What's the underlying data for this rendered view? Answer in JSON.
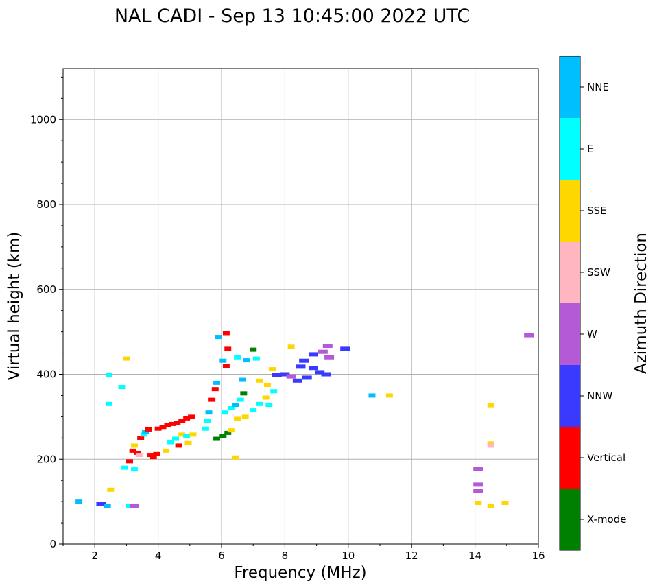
{
  "chart_data": {
    "type": "scatter",
    "title": "NAL CADI - Sep 13 10:45:00 2022 UTC",
    "xlabel": "Frequency (MHz)",
    "ylabel": "Virtual height (km)",
    "xlim": [
      1,
      16
    ],
    "ylim": [
      0,
      1120
    ],
    "xticks": [
      2,
      4,
      6,
      8,
      10,
      12,
      14,
      16
    ],
    "yticks": [
      0,
      200,
      400,
      600,
      800,
      1000
    ],
    "grid": true,
    "colorbar": {
      "label": "Azimuth Direction",
      "categories": [
        {
          "name": "X-mode",
          "color": "#008000"
        },
        {
          "name": "Vertical",
          "color": "#ff0000"
        },
        {
          "name": "NNW",
          "color": "#3a3aff"
        },
        {
          "name": "W",
          "color": "#b45ad6"
        },
        {
          "name": "SSW",
          "color": "#ffb6c1"
        },
        {
          "name": "SSE",
          "color": "#ffd700"
        },
        {
          "name": "E",
          "color": "#00ffff"
        },
        {
          "name": "NNE",
          "color": "#00bfff"
        }
      ]
    },
    "points": [
      {
        "f": 1.5,
        "h": 100,
        "d": "NNE"
      },
      {
        "f": 2.2,
        "h": 95,
        "d": "NNW"
      },
      {
        "f": 2.4,
        "h": 90,
        "d": "NNE"
      },
      {
        "f": 2.5,
        "h": 128,
        "d": "SSE"
      },
      {
        "f": 2.45,
        "h": 330,
        "d": "E"
      },
      {
        "f": 2.45,
        "h": 398,
        "d": "E"
      },
      {
        "f": 2.85,
        "h": 370,
        "d": "E"
      },
      {
        "f": 3.0,
        "h": 437,
        "d": "SSE"
      },
      {
        "f": 3.1,
        "h": 90,
        "d": "E"
      },
      {
        "f": 3.25,
        "h": 90,
        "d": "W"
      },
      {
        "f": 2.95,
        "h": 180,
        "d": "E"
      },
      {
        "f": 3.25,
        "h": 176,
        "d": "E"
      },
      {
        "f": 3.1,
        "h": 195,
        "d": "Vertical"
      },
      {
        "f": 3.2,
        "h": 220,
        "d": "Vertical"
      },
      {
        "f": 3.25,
        "h": 232,
        "d": "SSE"
      },
      {
        "f": 3.35,
        "h": 215,
        "d": "Vertical"
      },
      {
        "f": 3.4,
        "h": 210,
        "d": "SSW"
      },
      {
        "f": 3.45,
        "h": 250,
        "d": "Vertical"
      },
      {
        "f": 3.55,
        "h": 258,
        "d": "E"
      },
      {
        "f": 3.6,
        "h": 265,
        "d": "NNE"
      },
      {
        "f": 3.7,
        "h": 270,
        "d": "Vertical"
      },
      {
        "f": 3.75,
        "h": 210,
        "d": "Vertical"
      },
      {
        "f": 3.85,
        "h": 205,
        "d": "Vertical"
      },
      {
        "f": 3.95,
        "h": 212,
        "d": "Vertical"
      },
      {
        "f": 4.0,
        "h": 272,
        "d": "Vertical"
      },
      {
        "f": 4.15,
        "h": 276,
        "d": "Vertical"
      },
      {
        "f": 4.3,
        "h": 280,
        "d": "Vertical"
      },
      {
        "f": 4.45,
        "h": 283,
        "d": "Vertical"
      },
      {
        "f": 4.6,
        "h": 286,
        "d": "Vertical"
      },
      {
        "f": 4.75,
        "h": 290,
        "d": "Vertical"
      },
      {
        "f": 4.9,
        "h": 296,
        "d": "Vertical"
      },
      {
        "f": 5.05,
        "h": 300,
        "d": "Vertical"
      },
      {
        "f": 4.25,
        "h": 220,
        "d": "SSE"
      },
      {
        "f": 4.4,
        "h": 240,
        "d": "E"
      },
      {
        "f": 4.55,
        "h": 248,
        "d": "E"
      },
      {
        "f": 4.65,
        "h": 232,
        "d": "Vertical"
      },
      {
        "f": 4.75,
        "h": 258,
        "d": "SSE"
      },
      {
        "f": 4.9,
        "h": 255,
        "d": "E"
      },
      {
        "f": 4.95,
        "h": 238,
        "d": "SSE"
      },
      {
        "f": 5.1,
        "h": 258,
        "d": "SSE"
      },
      {
        "f": 5.5,
        "h": 272,
        "d": "E"
      },
      {
        "f": 5.55,
        "h": 290,
        "d": "E"
      },
      {
        "f": 5.6,
        "h": 310,
        "d": "NNE"
      },
      {
        "f": 5.7,
        "h": 340,
        "d": "Vertical"
      },
      {
        "f": 5.8,
        "h": 365,
        "d": "Vertical"
      },
      {
        "f": 5.85,
        "h": 380,
        "d": "NNE"
      },
      {
        "f": 5.9,
        "h": 488,
        "d": "NNE"
      },
      {
        "f": 6.05,
        "h": 432,
        "d": "NNE"
      },
      {
        "f": 6.15,
        "h": 497,
        "d": "Vertical"
      },
      {
        "f": 6.2,
        "h": 460,
        "d": "Vertical"
      },
      {
        "f": 6.15,
        "h": 420,
        "d": "Vertical"
      },
      {
        "f": 5.85,
        "h": 248,
        "d": "X-mode"
      },
      {
        "f": 6.05,
        "h": 255,
        "d": "X-mode"
      },
      {
        "f": 6.2,
        "h": 262,
        "d": "X-mode"
      },
      {
        "f": 6.3,
        "h": 268,
        "d": "SSE"
      },
      {
        "f": 6.1,
        "h": 310,
        "d": "E"
      },
      {
        "f": 6.3,
        "h": 320,
        "d": "E"
      },
      {
        "f": 6.45,
        "h": 328,
        "d": "NNE"
      },
      {
        "f": 6.6,
        "h": 340,
        "d": "E"
      },
      {
        "f": 6.7,
        "h": 355,
        "d": "X-mode"
      },
      {
        "f": 6.5,
        "h": 440,
        "d": "E"
      },
      {
        "f": 6.8,
        "h": 433,
        "d": "NNE"
      },
      {
        "f": 7.0,
        "h": 458,
        "d": "X-mode"
      },
      {
        "f": 7.1,
        "h": 437,
        "d": "E"
      },
      {
        "f": 6.65,
        "h": 387,
        "d": "NNE"
      },
      {
        "f": 6.5,
        "h": 295,
        "d": "SSE"
      },
      {
        "f": 6.75,
        "h": 300,
        "d": "SSE"
      },
      {
        "f": 7.0,
        "h": 315,
        "d": "E"
      },
      {
        "f": 7.2,
        "h": 330,
        "d": "E"
      },
      {
        "f": 7.4,
        "h": 345,
        "d": "SSE"
      },
      {
        "f": 7.5,
        "h": 328,
        "d": "E"
      },
      {
        "f": 7.65,
        "h": 360,
        "d": "E"
      },
      {
        "f": 7.2,
        "h": 385,
        "d": "SSE"
      },
      {
        "f": 7.45,
        "h": 375,
        "d": "SSE"
      },
      {
        "f": 7.75,
        "h": 398,
        "d": "NNW"
      },
      {
        "f": 7.6,
        "h": 412,
        "d": "SSE"
      },
      {
        "f": 6.45,
        "h": 204,
        "d": "SSE"
      },
      {
        "f": 8.0,
        "h": 400,
        "d": "NNW"
      },
      {
        "f": 8.2,
        "h": 395,
        "d": "W"
      },
      {
        "f": 8.4,
        "h": 385,
        "d": "NNW"
      },
      {
        "f": 8.5,
        "h": 418,
        "d": "NNW"
      },
      {
        "f": 8.7,
        "h": 392,
        "d": "NNW"
      },
      {
        "f": 8.9,
        "h": 415,
        "d": "NNW"
      },
      {
        "f": 9.1,
        "h": 405,
        "d": "NNW"
      },
      {
        "f": 9.3,
        "h": 400,
        "d": "NNW"
      },
      {
        "f": 8.6,
        "h": 432,
        "d": "NNW"
      },
      {
        "f": 8.9,
        "h": 447,
        "d": "NNW"
      },
      {
        "f": 9.2,
        "h": 453,
        "d": "W"
      },
      {
        "f": 9.35,
        "h": 467,
        "d": "W"
      },
      {
        "f": 9.4,
        "h": 440,
        "d": "W"
      },
      {
        "f": 8.2,
        "h": 465,
        "d": "SSE"
      },
      {
        "f": 9.9,
        "h": 460,
        "d": "NNW"
      },
      {
        "f": 10.75,
        "h": 350,
        "d": "NNE"
      },
      {
        "f": 11.3,
        "h": 350,
        "d": "SSE"
      },
      {
        "f": 14.1,
        "h": 177,
        "d": "W"
      },
      {
        "f": 14.1,
        "h": 140,
        "d": "W"
      },
      {
        "f": 14.1,
        "h": 125,
        "d": "W"
      },
      {
        "f": 14.1,
        "h": 97,
        "d": "SSE"
      },
      {
        "f": 14.5,
        "h": 90,
        "d": "SSE"
      },
      {
        "f": 14.95,
        "h": 97,
        "d": "SSE"
      },
      {
        "f": 14.5,
        "h": 327,
        "d": "SSE"
      },
      {
        "f": 14.5,
        "h": 237,
        "d": "SSE"
      },
      {
        "f": 14.5,
        "h": 232,
        "d": "SSW"
      },
      {
        "f": 15.7,
        "h": 492,
        "d": "W"
      }
    ]
  }
}
